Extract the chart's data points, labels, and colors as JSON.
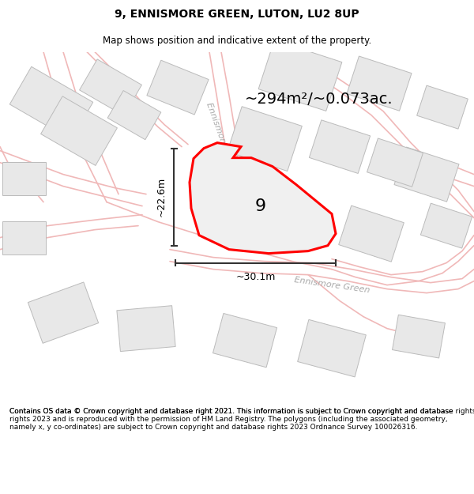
{
  "title": "9, ENNISMORE GREEN, LUTON, LU2 8UP",
  "subtitle": "Map shows position and indicative extent of the property.",
  "footer": "Contains OS data © Crown copyright and database right 2021. This information is subject to Crown copyright and database rights 2023 and is reproduced with the permission of HM Land Registry. The polygons (including the associated geometry, namely x, y co-ordinates) are subject to Crown copyright and database rights 2023 Ordnance Survey 100026316.",
  "area_label": "~294m²/~0.073ac.",
  "width_label": "~30.1m",
  "height_label": "~22.6m",
  "property_number": "9",
  "bg_color": "#ffffff",
  "map_bg": "#ffffff",
  "building_fill": "#e8e8e8",
  "building_edge": "#bbbbbb",
  "road_color": "#f0b8b8",
  "highlight_color": "#ff0000",
  "property_fill": "#f0f0f0",
  "dim_color": "#333333",
  "street_color": "#aaaaaa",
  "figsize": [
    6.0,
    6.25
  ],
  "dpi": 100,
  "title_fontsize": 10,
  "subtitle_fontsize": 8.5,
  "footer_fontsize": 6.5,
  "area_fontsize": 14,
  "dim_fontsize": 9,
  "number_fontsize": 16,
  "street_fontsize": 8
}
